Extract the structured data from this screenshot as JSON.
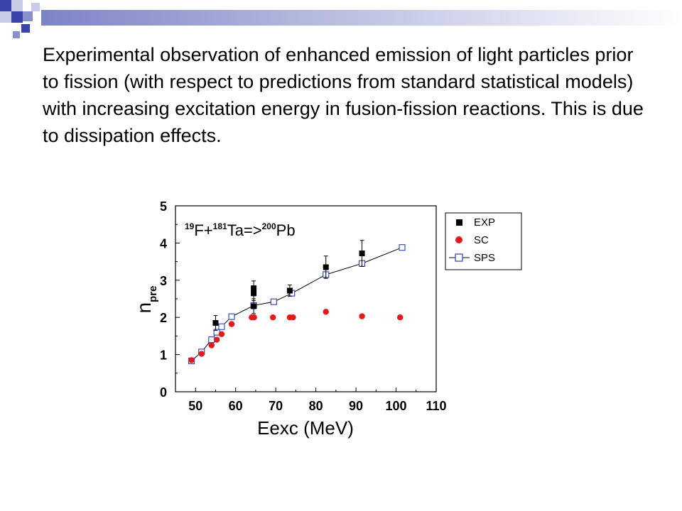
{
  "slide": {
    "body_text": "Experimental observation of enhanced emission of light particles prior to fission (with respect to predictions from standard statistical models) with increasing excitation energy in fusion-fission reactions.  This is due to dissipation effects."
  },
  "colors": {
    "exp": "#000000",
    "sc": "#e31a1c",
    "sps_marker": "#3b4fb8",
    "sps_line": "#000000",
    "decor_squares": "#3a44a8",
    "decor_light": "#c8cce6"
  },
  "chart_data": {
    "type": "scatter",
    "title": "",
    "reaction_label": {
      "z1": "19",
      "p1": "F+",
      "z2": "181",
      "p2": "Ta=>",
      "z3": "200",
      "p3": "Pb"
    },
    "xlabel": "Eexc (MeV)",
    "ylabel": {
      "main": "n",
      "sub": "pre"
    },
    "xlim": [
      45,
      110
    ],
    "ylim": [
      0,
      5
    ],
    "xticks": [
      50,
      60,
      70,
      80,
      90,
      100,
      110
    ],
    "yticks": [
      0,
      1,
      2,
      3,
      4,
      5
    ],
    "grid": false,
    "legend_position": "outside-right-top",
    "series": [
      {
        "name": "EXP",
        "marker": "filled-square",
        "color": "#000000",
        "x": [
          55,
          64.5,
          64.5,
          64.5,
          73.5,
          82.5,
          91.5
        ],
        "y": [
          1.85,
          2.3,
          2.65,
          2.78,
          2.72,
          3.35,
          3.72
        ],
        "err": [
          0.2,
          0.2,
          0.2,
          0.2,
          0.15,
          0.3,
          0.35
        ]
      },
      {
        "name": "SC",
        "marker": "filled-circle",
        "color": "#e31a1c",
        "x": [
          49,
          51.5,
          54,
          55.3,
          56.5,
          59,
          64,
          64.6,
          69.3,
          73.5,
          74.3,
          82.5,
          91.5,
          101
        ],
        "y": [
          0.85,
          1.02,
          1.25,
          1.4,
          1.55,
          1.82,
          2.0,
          2.0,
          2.0,
          2.0,
          2.0,
          2.15,
          2.03,
          2.0
        ]
      },
      {
        "name": "SPS",
        "marker": "open-square-line",
        "color": "#3b4fb8",
        "x": [
          49,
          51.5,
          54,
          55.3,
          56.5,
          59,
          64.5,
          69.5,
          74,
          82.5,
          91.5,
          101.5
        ],
        "y": [
          0.83,
          1.07,
          1.4,
          1.6,
          1.75,
          2.02,
          2.32,
          2.42,
          2.65,
          3.15,
          3.45,
          3.88
        ]
      }
    ]
  }
}
